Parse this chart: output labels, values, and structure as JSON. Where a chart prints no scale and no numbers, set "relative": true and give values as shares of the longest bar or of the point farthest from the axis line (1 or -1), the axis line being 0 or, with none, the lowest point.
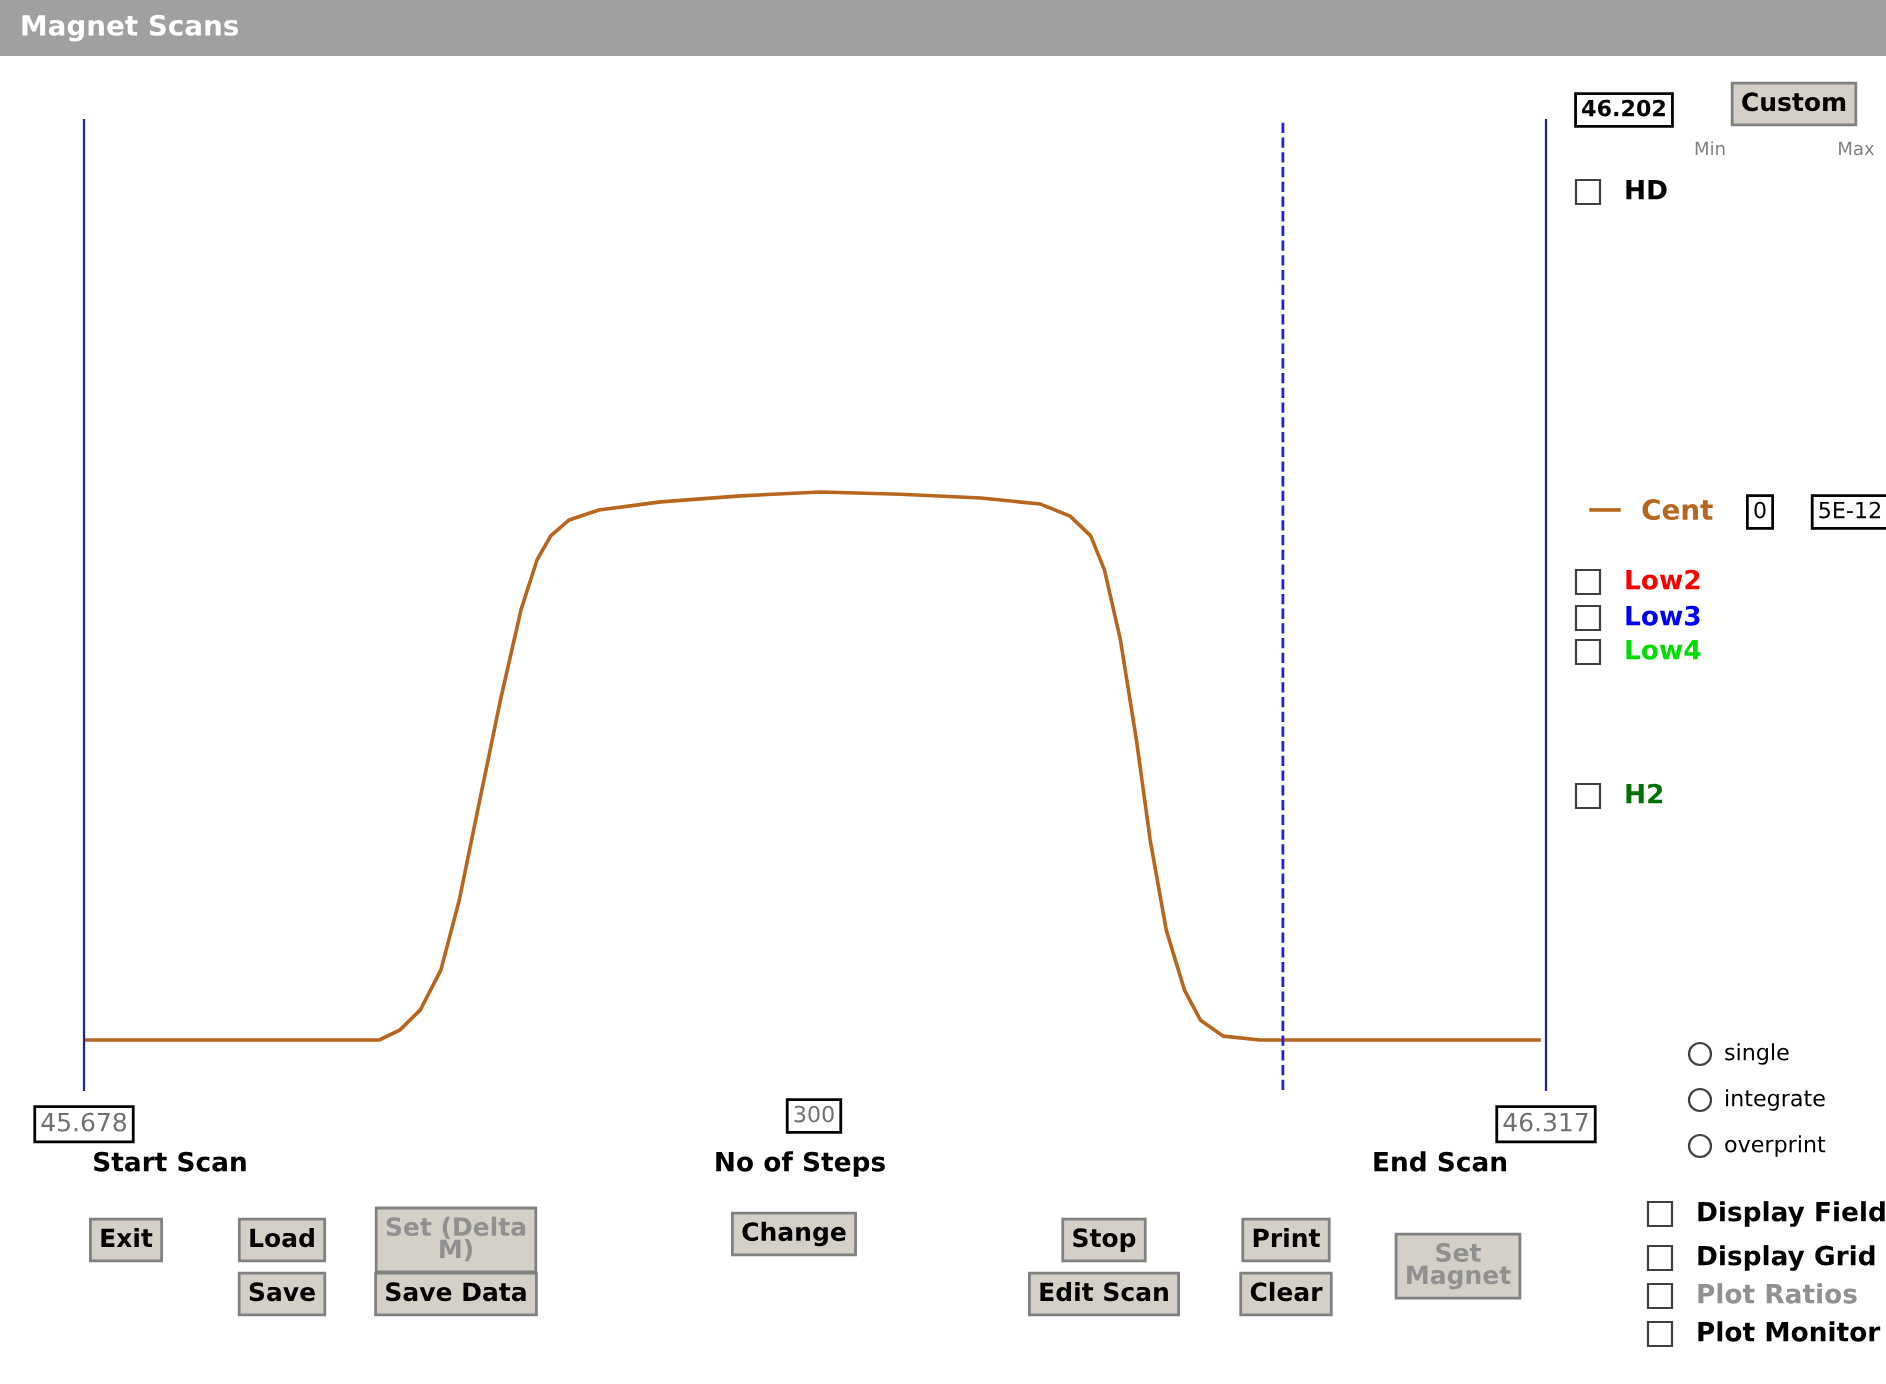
{
  "chart_data": {
    "type": "line",
    "title": "Magnet Scans",
    "relative": true,
    "xlim": [
      45.678,
      46.317
    ],
    "xticks": [
      45.678,
      46.317
    ],
    "series": [
      {
        "name": "Cent",
        "color": "#b8651e",
        "x": [
          45.678,
          45.772,
          45.807,
          45.816,
          45.825,
          45.834,
          45.842,
          45.851,
          45.86,
          45.869,
          45.876,
          45.882,
          45.89,
          45.903,
          45.93,
          45.965,
          46.0,
          46.035,
          46.07,
          46.096,
          46.109,
          46.118,
          46.124,
          46.131,
          46.138,
          46.144,
          46.151,
          46.159,
          46.166,
          46.176,
          46.192,
          46.314
        ],
        "values": [
          0,
          0,
          0,
          0.018,
          0.055,
          0.128,
          0.255,
          0.438,
          0.62,
          0.785,
          0.876,
          0.92,
          0.949,
          0.967,
          0.982,
          0.993,
          1,
          0.996,
          0.989,
          0.978,
          0.956,
          0.92,
          0.858,
          0.73,
          0.547,
          0.365,
          0.201,
          0.091,
          0.036,
          0.007,
          0,
          0
        ]
      }
    ],
    "ref_lines": [
      {
        "axis": "x",
        "value": 46.202,
        "color": "#2020e0",
        "line_style": "dashed"
      }
    ],
    "legend": "right",
    "grid": false,
    "marker": "none",
    "line_style": "solid",
    "annotations": [
      "46.202",
      "Custom",
      "Min",
      "Max",
      "HD",
      "0",
      "5E-12",
      "Low2",
      "Low3",
      "Low4",
      "H2",
      "300",
      "Start Scan",
      "No of Steps",
      "End Scan",
      "single",
      "integrate",
      "overprint",
      "Exit",
      "Load",
      "Save",
      "Set (Delta\nM)",
      "Save Data",
      "Change",
      "Stop",
      "Edit Scan",
      "Print",
      "Clear",
      "Set\nMagnet",
      "Display Field",
      "Display Grid",
      "Plot Ratios",
      "Plot Monitor"
    ]
  }
}
